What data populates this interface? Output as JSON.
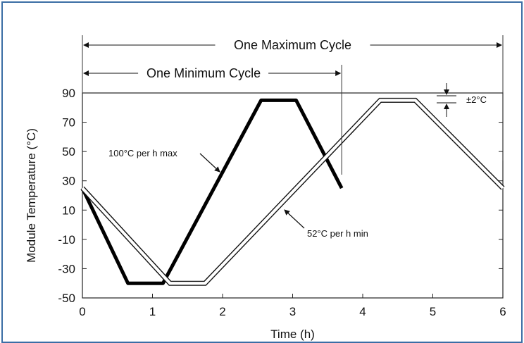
{
  "chart_data": {
    "type": "line",
    "xlabel": "Time (h)",
    "ylabel": "Module Temperature (°C)",
    "xlim": [
      0,
      6
    ],
    "ylim": [
      -50,
      90
    ],
    "x_ticks": [
      "0",
      "1",
      "2",
      "3",
      "4",
      "5",
      "6"
    ],
    "y_ticks": [
      "90",
      "70",
      "50",
      "30",
      "10",
      "-10",
      "-30",
      "-50"
    ],
    "grid": false,
    "series": [
      {
        "id": "minimum_cycle",
        "style": "thick-solid",
        "x": [
          0,
          0.65,
          1.15,
          2.55,
          3.05,
          3.7
        ],
        "y": [
          25,
          -40,
          -40,
          85,
          85,
          25
        ]
      },
      {
        "id": "maximum_cycle",
        "style": "double-line",
        "x": [
          0,
          1.25,
          1.75,
          4.25,
          4.75,
          6
        ],
        "y": [
          25,
          -40,
          -40,
          85,
          85,
          25
        ]
      }
    ],
    "annotations": {
      "max_cycle_label": "One Maximum Cycle",
      "min_cycle_label": "One Minimum Cycle",
      "rate_max_label": "100°C per h max",
      "rate_min_label": "52°C per h min",
      "tolerance_label": "±2°C"
    },
    "spans": {
      "max_cycle": [
        0,
        6
      ],
      "min_cycle": [
        0,
        3.7
      ]
    }
  }
}
